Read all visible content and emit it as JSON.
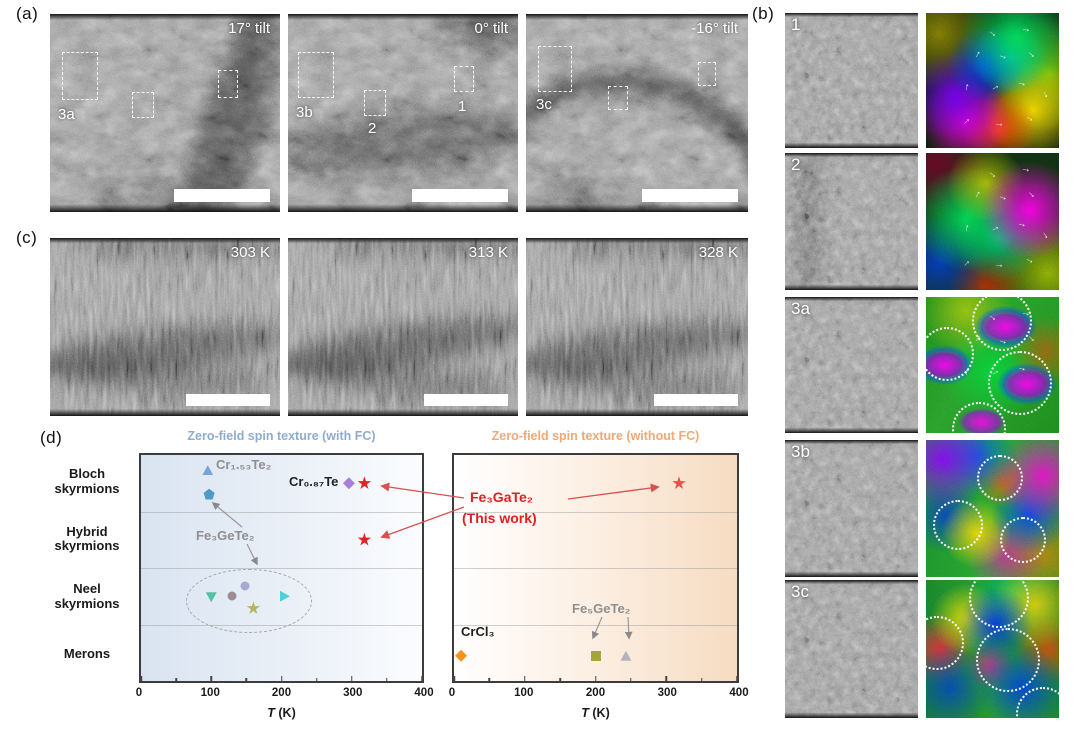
{
  "panels": {
    "a": {
      "label": "(a)",
      "images": [
        {
          "tilt": "17° tilt",
          "regions": [
            "3a"
          ]
        },
        {
          "tilt": "0° tilt",
          "regions": [
            "3b",
            "2",
            "1"
          ]
        },
        {
          "tilt": "-16° tilt",
          "regions": [
            "3c"
          ]
        }
      ]
    },
    "b": {
      "label": "(b)",
      "rows": [
        {
          "id": "1"
        },
        {
          "id": "2"
        },
        {
          "id": "3a"
        },
        {
          "id": "3b"
        },
        {
          "id": "3c"
        }
      ]
    },
    "c": {
      "label": "(c)",
      "images": [
        {
          "temperature": "303 K"
        },
        {
          "temperature": "313 K"
        },
        {
          "temperature": "328 K"
        }
      ]
    },
    "d": {
      "label": "(d)",
      "annotations": {
        "cr153te2": "Cr₁.₅₃Te₂",
        "cr087te": "Cr₀.₈₇Te",
        "fe3gete2": "Fe₃GeTe₂",
        "fe3gate2": "Fe₃GaTe₂",
        "this_work": "(This work)",
        "crcl3": "CrCl₃",
        "fe5gete2": "Fe₅GeTe₂"
      }
    }
  },
  "chart_data": [
    {
      "type": "scatter",
      "title": "Zero-field spin texture (with FC)",
      "title_color": "#8faccf",
      "xlabel": "T (K)",
      "xlim": [
        0,
        400
      ],
      "xticks": [
        0,
        100,
        200,
        300,
        400
      ],
      "categories": [
        "Bloch skyrmions",
        "Hybrid skyrmions",
        "Neel skyrmions",
        "Merons"
      ],
      "points": [
        {
          "material": "Cr₁.₅₃Te₂",
          "T": 95,
          "category": "Bloch skyrmions",
          "marker": "triangle-up",
          "color": "#7aa3d6",
          "dy": -13
        },
        {
          "material": "Fe₃GeTe₂",
          "T": 97,
          "category": "Bloch skyrmions",
          "marker": "pentagon",
          "color": "#4f9bc8",
          "dy": 11
        },
        {
          "material": "Cr₀.₈₇Te",
          "T": 296,
          "category": "Bloch skyrmions",
          "marker": "diamond",
          "color": "#a77fd9",
          "dy": 0
        },
        {
          "material": "Fe₃GaTe₂ (This work)",
          "T": 318,
          "category": "Bloch skyrmions",
          "marker": "star",
          "color": "#e02424",
          "dy": 0
        },
        {
          "material": "Fe₃GaTe₂ (This work)",
          "T": 318,
          "category": "Hybrid skyrmions",
          "marker": "star",
          "color": "#e02424",
          "dy": 0
        },
        {
          "material": "Fe₃GeTe₂",
          "T": 100,
          "category": "Neel skyrmions",
          "marker": "triangle-down",
          "color": "#57bfa2",
          "dy": 1
        },
        {
          "material": "Fe₃GeTe₂",
          "T": 130,
          "category": "Neel skyrmions",
          "marker": "circle",
          "color": "#9b8d93",
          "dy": 0
        },
        {
          "material": "Fe₃GeTe₂",
          "T": 148,
          "category": "Neel skyrmions",
          "marker": "circle",
          "color": "#a9a9d0",
          "dy": -10
        },
        {
          "material": "Fe₃GeTe₂",
          "T": 160,
          "category": "Neel skyrmions",
          "marker": "star",
          "color": "#b8b45e",
          "dy": 12
        },
        {
          "material": "Fe₃GeTe₂",
          "T": 205,
          "category": "Neel skyrmions",
          "marker": "triangle-right",
          "color": "#4ed0d8",
          "dy": 0
        }
      ]
    },
    {
      "type": "scatter",
      "title": "Zero-field spin texture (without FC)",
      "title_color": "#f0a877",
      "xlabel": "T (K)",
      "xlim": [
        0,
        400
      ],
      "xticks": [
        0,
        100,
        200,
        300,
        400
      ],
      "categories": [
        "Bloch skyrmions",
        "Hybrid skyrmions",
        "Neel skyrmions",
        "Merons"
      ],
      "points": [
        {
          "material": "Fe₃GaTe₂ (This work)",
          "T": 318,
          "category": "Bloch skyrmions",
          "marker": "star",
          "color": "#e8524a",
          "dy": 0
        },
        {
          "material": "CrCl₃",
          "T": 10,
          "category": "Merons",
          "marker": "diamond",
          "color": "#f5921e",
          "dy": 3
        },
        {
          "material": "Fe₅GeTe₂",
          "T": 200,
          "category": "Merons",
          "marker": "square",
          "color": "#a8a23c",
          "dy": 3
        },
        {
          "material": "Fe₅GeTe₂",
          "T": 243,
          "category": "Merons",
          "marker": "triangle-up",
          "color": "#b3b3bd",
          "dy": 3
        }
      ]
    }
  ]
}
